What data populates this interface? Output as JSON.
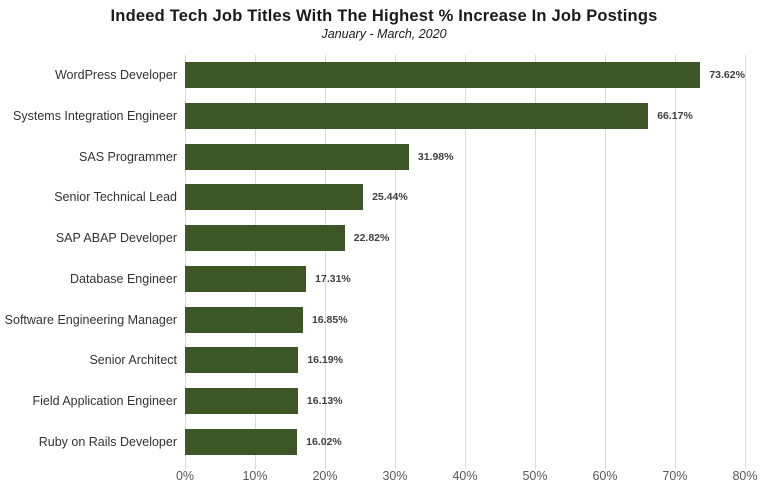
{
  "chart_data": {
    "type": "bar",
    "orientation": "horizontal",
    "title": "Indeed Tech Job Titles With The Highest % Increase In Job Postings",
    "subtitle": "January - March, 2020",
    "categories": [
      "WordPress Developer",
      "Systems Integration Engineer",
      "SAS Programmer",
      "Senior Technical Lead",
      "SAP ABAP Developer",
      "Database Engineer",
      "Software Engineering Manager",
      "Senior Architect",
      "Field Application Engineer",
      "Ruby on Rails Developer"
    ],
    "values": [
      73.62,
      66.17,
      31.98,
      25.44,
      22.82,
      17.31,
      16.85,
      16.19,
      16.13,
      16.02
    ],
    "value_labels": [
      "73.62%",
      "66.17%",
      "31.98%",
      "25.44%",
      "22.82%",
      "17.31%",
      "16.85%",
      "16.19%",
      "16.13%",
      "16.02%"
    ],
    "xlabel": "",
    "ylabel": "",
    "xlim": [
      0,
      80
    ],
    "x_ticks": [
      0,
      10,
      20,
      30,
      40,
      50,
      60,
      70,
      80
    ],
    "x_tick_labels": [
      "0%",
      "10%",
      "20%",
      "30%",
      "40%",
      "50%",
      "60%",
      "70%",
      "80%"
    ],
    "grid": true,
    "legend": "none",
    "colors": {
      "bar": "#3d5626",
      "gridline": "#d9d9d9",
      "tick_label": "#595959",
      "data_label": "#404040",
      "category_label": "#333333",
      "title": "#1a1a1a",
      "background": "#ffffff"
    }
  }
}
